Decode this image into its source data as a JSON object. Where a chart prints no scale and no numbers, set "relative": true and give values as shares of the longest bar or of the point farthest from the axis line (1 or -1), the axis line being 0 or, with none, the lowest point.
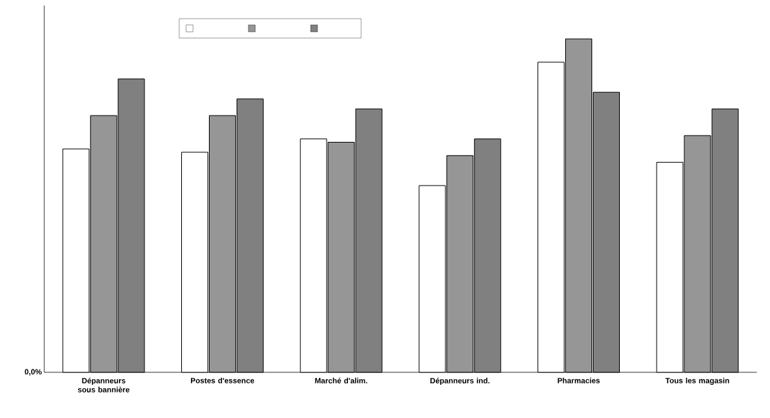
{
  "chart_data": {
    "type": "bar",
    "relative": true,
    "categories": [
      "Dépanneurs sous bannière",
      "Postes d'essence",
      "Marché d'alim.",
      "Dépanneurs ind.",
      "Pharmacies",
      "Tous les magasin"
    ],
    "series": [
      {
        "color": "#ffffff",
        "values": [
          0.67,
          0.66,
          0.7,
          0.56,
          0.93,
          0.63
        ]
      },
      {
        "color": "#969696",
        "values": [
          0.77,
          0.77,
          0.69,
          0.65,
          1,
          0.71
        ]
      },
      {
        "color": "#808080",
        "values": [
          0.88,
          0.82,
          0.79,
          0.7,
          0.84,
          0.79
        ]
      }
    ],
    "annotations": [
      "0,0%"
    ]
  }
}
